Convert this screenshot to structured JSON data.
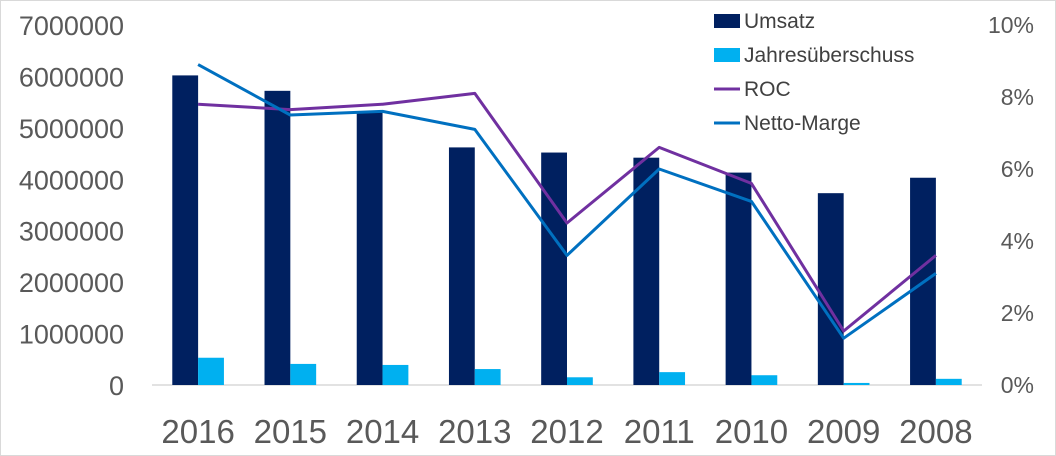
{
  "chart_data": {
    "type": "bar",
    "categories": [
      "2016",
      "2015",
      "2014",
      "2013",
      "2012",
      "2011",
      "2010",
      "2009",
      "2008"
    ],
    "ylim": [
      0,
      7000000
    ],
    "y2lim": [
      0,
      0.1
    ],
    "y_ticks": [
      "0",
      "1000000",
      "2000000",
      "3000000",
      "4000000",
      "5000000",
      "6000000",
      "7000000"
    ],
    "y2_ticks": [
      "0%",
      "2%",
      "4%",
      "6%",
      "8%",
      "10%"
    ],
    "grid": false,
    "legend_position": "top-right",
    "series": [
      {
        "name": "Umsatz",
        "type": "bar",
        "axis": "left",
        "color": "#002060",
        "values": [
          6020000,
          5720000,
          5320000,
          4620000,
          4520000,
          4420000,
          4130000,
          3730000,
          4030000
        ]
      },
      {
        "name": "Jahresüberschuss",
        "type": "bar",
        "axis": "left",
        "color": "#00B0F0",
        "values": [
          530000,
          410000,
          390000,
          310000,
          150000,
          250000,
          190000,
          40000,
          120000
        ]
      },
      {
        "name": "ROC",
        "type": "line",
        "axis": "right",
        "color": "#7030A0",
        "values": [
          0.078,
          0.0765,
          0.078,
          0.081,
          0.045,
          0.066,
          0.056,
          0.015,
          0.036
        ]
      },
      {
        "name": "Netto-Marge",
        "type": "line",
        "axis": "right",
        "color": "#0070C0",
        "values": [
          0.089,
          0.075,
          0.076,
          0.071,
          0.036,
          0.06,
          0.051,
          0.013,
          0.031
        ]
      }
    ]
  }
}
